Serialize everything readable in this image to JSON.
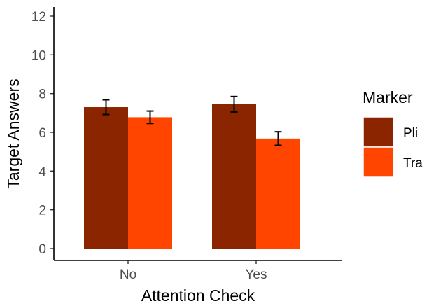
{
  "chart_data": {
    "type": "bar",
    "categories": [
      "No",
      "Yes"
    ],
    "series": [
      {
        "name": "Pli",
        "color": "#8B2500",
        "values": [
          7.3,
          7.45
        ],
        "error": [
          0.38,
          0.4
        ]
      },
      {
        "name": "Tra",
        "color": "#FF4500",
        "values": [
          6.78,
          5.68
        ],
        "error": [
          0.32,
          0.35
        ]
      }
    ],
    "xlabel": "Attention Check",
    "ylabel": "Target Answers",
    "ylim": [
      0,
      12.5
    ],
    "yticks": [
      0,
      2,
      4,
      6,
      8,
      10,
      12
    ],
    "grid": false,
    "legend": {
      "title": "Marker",
      "position": "right"
    }
  }
}
